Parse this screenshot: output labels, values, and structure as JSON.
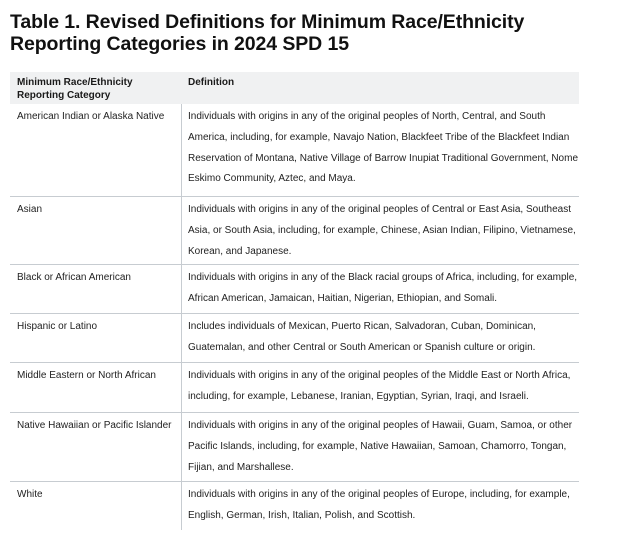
{
  "title": "Table 1. Revised Definitions for Minimum Race/Ethnicity Reporting Categories in 2024 SPD 15",
  "table": {
    "headers": {
      "category": "Minimum Race/Ethnicity Reporting Category",
      "definition": "Definition"
    },
    "rows": [
      {
        "category": "American Indian or Alaska Native",
        "definition": "Individuals with origins in any of the original peoples of North, Central, and South America, including, for example, Navajo Nation, Blackfeet Tribe of the Blackfeet Indian Reservation of Montana, Native Village of Barrow Inupiat Traditional Government, Nome Eskimo Community, Aztec, and Maya."
      },
      {
        "category": "Asian",
        "definition": "Individuals with origins in any of the original peoples of Central or East Asia, Southeast Asia, or South Asia, including, for example, Chinese, Asian Indian, Filipino, Vietnamese, Korean, and Japanese."
      },
      {
        "category": "Black or African American",
        "definition": "Individuals with origins in any of the Black racial groups of Africa, including, for example, African American, Jamaican, Haitian, Nigerian, Ethiopian, and Somali."
      },
      {
        "category": "Hispanic or Latino",
        "definition": "Includes individuals of Mexican, Puerto Rican, Salvadoran, Cuban, Dominican, Guatemalan, and other Central or South American or Spanish culture or origin."
      },
      {
        "category": "Middle Eastern or North African",
        "definition": "Individuals with origins in any of the original peoples of the Middle East or North Africa, including, for example, Lebanese, Iranian, Egyptian, Syrian, Iraqi, and Israeli."
      },
      {
        "category": "Native Hawaiian or Pacific Islander",
        "definition": "Individuals with origins in any of the original peoples of Hawaii, Guam, Samoa, or other Pacific Islands, including, for example, Native Hawaiian, Samoan, Chamorro, Tongan, Fijian, and Marshallese."
      },
      {
        "category": "White",
        "definition": "Individuals with origins in any of the original peoples of Europe, including, for example, English, German, Irish, Italian, Polish, and Scottish."
      }
    ]
  },
  "colors": {
    "header_background": "#f0f1f2",
    "border": "#c7ccd1",
    "text": "#1a1a1a"
  }
}
